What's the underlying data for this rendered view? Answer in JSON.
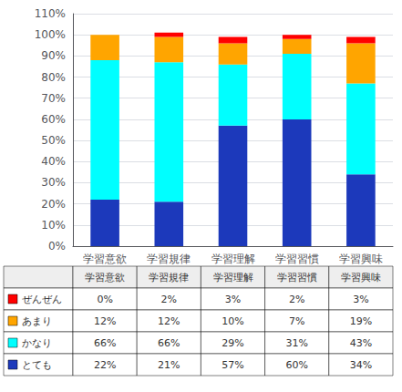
{
  "chart_data": {
    "type": "bar",
    "stacked": true,
    "grid": true,
    "categories": [
      "学習意欲",
      "学習規律",
      "学習理解",
      "学習習慣",
      "学習興味"
    ],
    "series": [
      {
        "name": "とても",
        "color": "#1C39BB",
        "values": [
          22,
          21,
          57,
          60,
          34
        ],
        "value_labels": [
          "22%",
          "21%",
          "57%",
          "60%",
          "34%"
        ]
      },
      {
        "name": "かなり",
        "color": "#00FFFF",
        "values": [
          66,
          66,
          29,
          31,
          43
        ],
        "value_labels": [
          "66%",
          "66%",
          "29%",
          "31%",
          "43%"
        ]
      },
      {
        "name": "あまり",
        "color": "#FFA500",
        "values": [
          12,
          12,
          10,
          7,
          19
        ],
        "value_labels": [
          "12%",
          "12%",
          "10%",
          "7%",
          "19%"
        ]
      },
      {
        "name": "ぜんぜん",
        "color": "#FF0000",
        "values": [
          0,
          2,
          3,
          2,
          3
        ],
        "value_labels": [
          "0%",
          "2%",
          "3%",
          "2%",
          "3%"
        ]
      }
    ],
    "ylim": [
      0,
      110
    ],
    "yticks": [
      {
        "value": 0,
        "label": "0%"
      },
      {
        "value": 10,
        "label": "10%"
      },
      {
        "value": 20,
        "label": "20%"
      },
      {
        "value": 30,
        "label": "30%"
      },
      {
        "value": 40,
        "label": "40%"
      },
      {
        "value": 50,
        "label": "50%"
      },
      {
        "value": 60,
        "label": "60%"
      },
      {
        "value": 70,
        "label": "70%"
      },
      {
        "value": 80,
        "label": "80%"
      },
      {
        "value": 90,
        "label": "90%"
      },
      {
        "value": 100,
        "label": "100%"
      },
      {
        "value": 110,
        "label": "110%"
      }
    ]
  }
}
